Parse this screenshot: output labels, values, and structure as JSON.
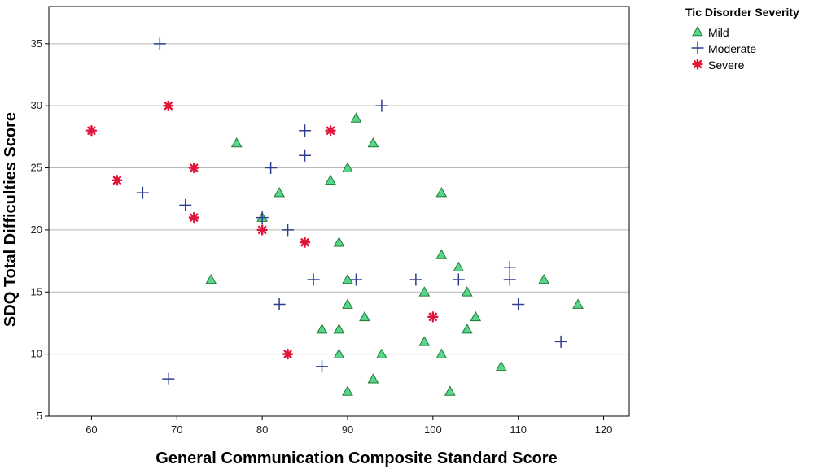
{
  "chart_data": {
    "type": "scatter",
    "title": "",
    "xlabel": "General Communication Composite Standard Score",
    "ylabel": "SDQ Total Difficulties Score",
    "xlim": [
      55,
      123
    ],
    "ylim": [
      5,
      38
    ],
    "xticks": [
      60,
      70,
      80,
      90,
      100,
      110,
      120
    ],
    "yticks": [
      5,
      10,
      15,
      20,
      25,
      30,
      35
    ],
    "grid": "horizontal",
    "legend_title": "Tic Disorder Severity",
    "legend_position": "top-right outside",
    "series": [
      {
        "name": "Mild",
        "marker": "triangle",
        "color": "#58d68d",
        "stroke": "#1e7a33",
        "points": [
          [
            74,
            16
          ],
          [
            77,
            27
          ],
          [
            80,
            21
          ],
          [
            82,
            23
          ],
          [
            87,
            12
          ],
          [
            88,
            24
          ],
          [
            89,
            19
          ],
          [
            89,
            12
          ],
          [
            89,
            10
          ],
          [
            90,
            25
          ],
          [
            90,
            16
          ],
          [
            90,
            14
          ],
          [
            90,
            7
          ],
          [
            91,
            29
          ],
          [
            92,
            13
          ],
          [
            93,
            27
          ],
          [
            93,
            8
          ],
          [
            94,
            10
          ],
          [
            99,
            15
          ],
          [
            99,
            11
          ],
          [
            101,
            23
          ],
          [
            101,
            18
          ],
          [
            101,
            10
          ],
          [
            102,
            7
          ],
          [
            103,
            17
          ],
          [
            104,
            15
          ],
          [
            104,
            12
          ],
          [
            105,
            13
          ],
          [
            108,
            9
          ],
          [
            113,
            16
          ],
          [
            117,
            14
          ]
        ]
      },
      {
        "name": "Moderate",
        "marker": "plus",
        "color": "#2b3e8f",
        "points": [
          [
            66,
            23
          ],
          [
            68,
            35
          ],
          [
            69,
            8
          ],
          [
            71,
            22
          ],
          [
            80,
            21
          ],
          [
            81,
            25
          ],
          [
            82,
            14
          ],
          [
            83,
            20
          ],
          [
            85,
            28
          ],
          [
            85,
            26
          ],
          [
            86,
            16
          ],
          [
            87,
            9
          ],
          [
            91,
            16
          ],
          [
            94,
            30
          ],
          [
            98,
            16
          ],
          [
            103,
            16
          ],
          [
            109,
            17
          ],
          [
            109,
            16
          ],
          [
            110,
            14
          ],
          [
            115,
            11
          ]
        ]
      },
      {
        "name": "Severe",
        "marker": "asterisk",
        "color": "#e0153a",
        "points": [
          [
            60,
            28
          ],
          [
            63,
            24
          ],
          [
            69,
            30
          ],
          [
            72,
            25
          ],
          [
            72,
            21
          ],
          [
            80,
            20
          ],
          [
            83,
            10
          ],
          [
            85,
            19
          ],
          [
            88,
            28
          ],
          [
            100,
            13
          ]
        ]
      }
    ]
  }
}
